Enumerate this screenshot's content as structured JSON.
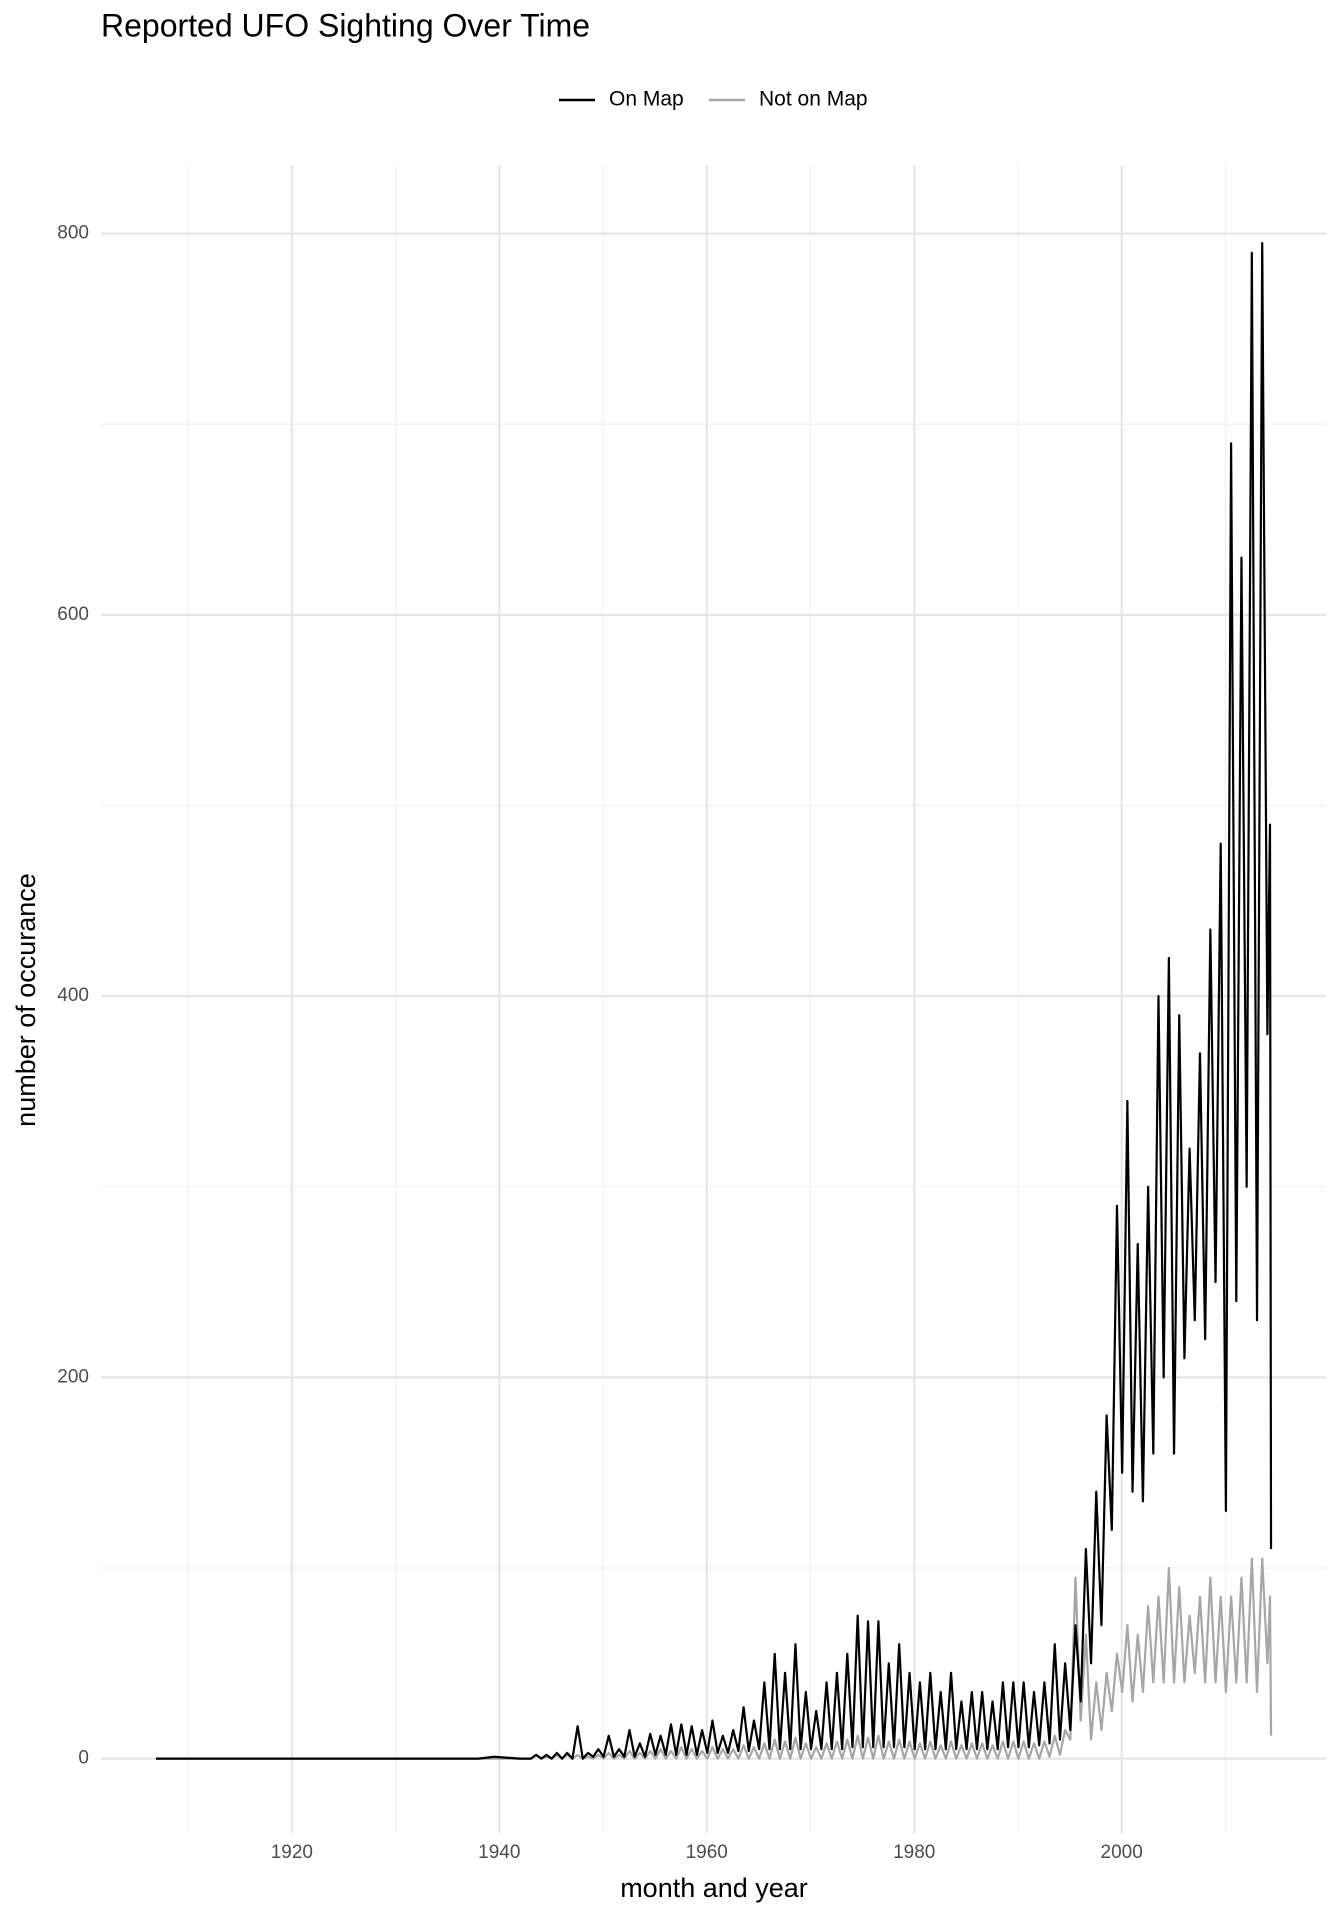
{
  "chart_data": {
    "type": "line",
    "title": "Reported UFO Sighting Over Time",
    "x_label": "month and year",
    "y_label": "number of occurance",
    "x": [
      1906.9,
      1920,
      1938,
      1939.5,
      1942,
      1943.05,
      1943.55,
      1944.05,
      1944.55,
      1945.05,
      1945.55,
      1946.05,
      1946.55,
      1947.05,
      1947.55,
      1948.05,
      1948.55,
      1949.05,
      1949.55,
      1950.05,
      1950.55,
      1951.05,
      1951.55,
      1952.05,
      1952.55,
      1953.05,
      1953.55,
      1954.05,
      1954.55,
      1955.05,
      1955.55,
      1956.05,
      1956.55,
      1957.05,
      1957.55,
      1958.05,
      1958.55,
      1959.05,
      1959.55,
      1960.05,
      1960.55,
      1961.05,
      1961.55,
      1962.05,
      1962.55,
      1963.05,
      1963.55,
      1964.05,
      1964.55,
      1965.05,
      1965.55,
      1966.05,
      1966.55,
      1967.05,
      1967.55,
      1968.05,
      1968.55,
      1969.05,
      1969.55,
      1970.05,
      1970.55,
      1971.05,
      1971.55,
      1972.05,
      1972.55,
      1973.05,
      1973.55,
      1974.05,
      1974.55,
      1975.05,
      1975.55,
      1976.05,
      1976.55,
      1977.05,
      1977.55,
      1978.05,
      1978.55,
      1979.05,
      1979.55,
      1980.05,
      1980.55,
      1981.05,
      1981.55,
      1982.05,
      1982.55,
      1983.05,
      1983.55,
      1984.05,
      1984.55,
      1985.05,
      1985.55,
      1986.05,
      1986.55,
      1987.05,
      1987.55,
      1988.05,
      1988.55,
      1989.05,
      1989.55,
      1990.05,
      1990.55,
      1991.05,
      1991.55,
      1992.05,
      1992.55,
      1993.05,
      1993.55,
      1994.05,
      1994.55,
      1995.05,
      1995.55,
      1996.05,
      1996.55,
      1997.05,
      1997.55,
      1998.05,
      1998.55,
      1999.05,
      1999.55,
      2000.05,
      2000.55,
      2001.05,
      2001.55,
      2002.05,
      2002.55,
      2003.05,
      2003.55,
      2004.05,
      2004.55,
      2005.05,
      2005.55,
      2006.05,
      2006.55,
      2007.05,
      2007.55,
      2008.05,
      2008.55,
      2009.05,
      2009.55,
      2010.05,
      2010.55,
      2011.05,
      2011.55,
      2012.05,
      2012.55,
      2013.05,
      2013.55,
      2014.05,
      2014.3,
      2014.4
    ],
    "series": [
      {
        "name": "On Map",
        "color": "#000000",
        "values": [
          0,
          0,
          0,
          1,
          0,
          0,
          2,
          0,
          2,
          0,
          3,
          0,
          3,
          0,
          17,
          0,
          3,
          1,
          5,
          1,
          12,
          1,
          5,
          1,
          15,
          1,
          8,
          1,
          13,
          2,
          12,
          2,
          18,
          2,
          18,
          2,
          17,
          2,
          15,
          3,
          20,
          3,
          12,
          3,
          15,
          4,
          27,
          4,
          20,
          5,
          40,
          5,
          55,
          5,
          45,
          5,
          60,
          5,
          35,
          5,
          25,
          5,
          40,
          5,
          45,
          5,
          55,
          6,
          75,
          6,
          72,
          6,
          72,
          6,
          50,
          6,
          60,
          6,
          45,
          5,
          40,
          5,
          45,
          5,
          35,
          5,
          45,
          5,
          30,
          5,
          35,
          5,
          35,
          5,
          30,
          5,
          40,
          6,
          40,
          6,
          40,
          6,
          35,
          7,
          40,
          8,
          60,
          10,
          50,
          15,
          70,
          30,
          110,
          50,
          140,
          70,
          180,
          120,
          290,
          150,
          345,
          140,
          270,
          135,
          300,
          160,
          400,
          200,
          420,
          160,
          390,
          210,
          320,
          230,
          370,
          220,
          435,
          250,
          480,
          130,
          690,
          240,
          630,
          300,
          790,
          230,
          795,
          380,
          490,
          110
        ]
      },
      {
        "name": "Not on Map",
        "color": "#a6a6a6",
        "values": [
          0,
          0,
          0,
          0,
          0,
          0,
          2,
          0,
          1,
          0,
          2,
          0,
          2,
          0,
          2,
          0,
          1,
          0,
          2,
          0,
          3,
          0,
          2,
          0,
          4,
          0,
          3,
          0,
          4,
          0,
          5,
          0,
          4,
          0,
          6,
          0,
          5,
          0,
          4,
          0,
          6,
          0,
          5,
          0,
          5,
          0,
          7,
          0,
          6,
          0,
          8,
          0,
          10,
          0,
          9,
          0,
          11,
          0,
          8,
          0,
          6,
          0,
          8,
          0,
          9,
          0,
          10,
          0,
          12,
          0,
          11,
          0,
          12,
          0,
          9,
          0,
          10,
          0,
          9,
          0,
          8,
          0,
          9,
          0,
          7,
          0,
          9,
          0,
          7,
          0,
          8,
          0,
          8,
          0,
          7,
          0,
          9,
          0,
          9,
          0,
          9,
          0,
          8,
          0,
          9,
          1,
          12,
          2,
          15,
          10,
          95,
          20,
          65,
          10,
          40,
          15,
          45,
          25,
          55,
          35,
          70,
          30,
          65,
          35,
          80,
          40,
          85,
          40,
          100,
          40,
          90,
          40,
          75,
          45,
          85,
          40,
          95,
          40,
          85,
          35,
          85,
          40,
          95,
          40,
          105,
          35,
          105,
          50,
          85,
          12
        ]
      }
    ],
    "xlim": [
      1901.6,
      2019.7
    ],
    "ylim": [
      -39,
      836
    ],
    "xticks": [
      1920,
      1940,
      1960,
      1980,
      2000
    ],
    "yticks": [
      0,
      200,
      400,
      600,
      800
    ],
    "x_minor_grid": [
      1910,
      1930,
      1950,
      1970,
      1990,
      2010
    ],
    "y_minor_grid": [
      100,
      300,
      500,
      700
    ],
    "grid": true,
    "legend": "top"
  }
}
